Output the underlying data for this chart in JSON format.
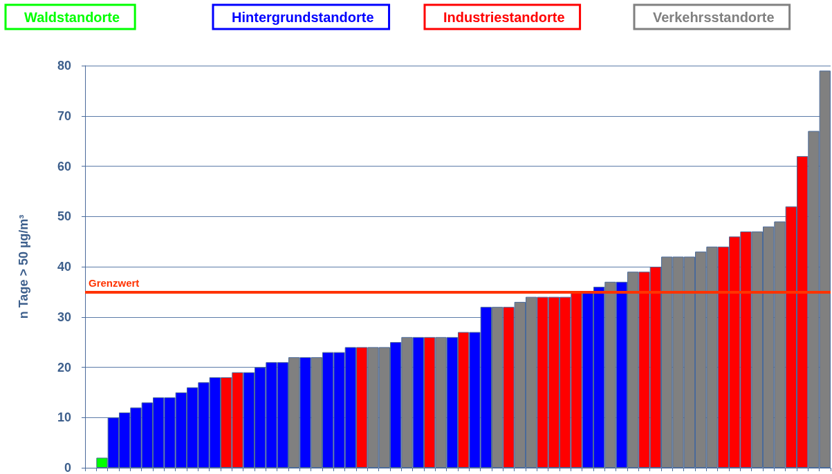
{
  "chart_data": {
    "type": "bar",
    "ylabel": "n Tage > 50 µg/m³",
    "categories": [
      null,
      null,
      null,
      null,
      null,
      null,
      null,
      null,
      null,
      null,
      null,
      null,
      null,
      null,
      null,
      null,
      null,
      null,
      null,
      null,
      null,
      null,
      null,
      null,
      null,
      null,
      null,
      null,
      null,
      null,
      null,
      null,
      null,
      null,
      null,
      null,
      null,
      null,
      null,
      null,
      null,
      null,
      null,
      null,
      null,
      null,
      null,
      null,
      null,
      null,
      null,
      null,
      null,
      null,
      null,
      null,
      null,
      null,
      null,
      null,
      null,
      null,
      null,
      null,
      null,
      null
    ],
    "stacked": true,
    "series": [
      {
        "name": "Waldstandorte",
        "color": "#00ff00",
        "values": [
          null,
          2,
          null,
          null,
          null,
          null,
          null,
          null,
          null,
          null,
          null,
          null,
          null,
          null,
          null,
          null,
          null,
          null,
          null,
          null,
          null,
          null,
          null,
          null,
          null,
          null,
          null,
          null,
          null,
          null,
          null,
          null,
          null,
          null,
          null,
          null,
          null,
          null,
          null,
          null,
          null,
          null,
          null,
          null,
          null,
          null,
          null,
          null,
          null,
          null,
          null,
          null,
          null,
          null,
          null,
          null,
          null,
          null,
          null,
          null,
          null,
          null,
          null,
          null,
          null,
          null
        ]
      },
      {
        "name": "Hintergrundstandorte",
        "color": "#0000ff",
        "values": [
          null,
          null,
          10,
          11,
          12,
          13,
          14,
          14,
          15,
          16,
          17,
          18,
          null,
          null,
          19,
          20,
          21,
          21,
          null,
          22,
          null,
          23,
          23,
          24,
          null,
          null,
          null,
          25,
          null,
          26,
          null,
          null,
          26,
          null,
          27,
          32,
          null,
          null,
          null,
          null,
          null,
          null,
          null,
          null,
          35,
          36,
          null,
          37,
          null,
          null,
          null,
          null,
          null,
          null,
          null,
          null,
          null,
          null,
          null,
          null,
          null,
          null,
          null,
          null,
          null,
          null
        ]
      },
      {
        "name": "Industriestandorte",
        "color": "#ff0000",
        "values": [
          null,
          null,
          null,
          null,
          null,
          null,
          null,
          null,
          null,
          null,
          null,
          null,
          18,
          19,
          null,
          null,
          null,
          null,
          null,
          null,
          null,
          null,
          null,
          null,
          24,
          null,
          null,
          null,
          null,
          null,
          26,
          null,
          null,
          27,
          null,
          null,
          null,
          32,
          null,
          null,
          34,
          34,
          34,
          35,
          null,
          null,
          null,
          null,
          null,
          39,
          40,
          null,
          null,
          null,
          null,
          null,
          44,
          46,
          47,
          null,
          null,
          null,
          52,
          62,
          null,
          null
        ]
      },
      {
        "name": "Verkehrsstandorte",
        "color": "#808080",
        "values": [
          null,
          null,
          null,
          null,
          null,
          null,
          null,
          null,
          null,
          null,
          null,
          null,
          null,
          null,
          null,
          null,
          null,
          null,
          22,
          null,
          22,
          null,
          null,
          null,
          null,
          24,
          24,
          null,
          26,
          null,
          null,
          26,
          null,
          null,
          null,
          null,
          32,
          null,
          33,
          34,
          null,
          null,
          null,
          null,
          null,
          null,
          37,
          null,
          39,
          null,
          null,
          42,
          42,
          42,
          43,
          44,
          null,
          null,
          null,
          47,
          48,
          49,
          null,
          null,
          67,
          79
        ]
      }
    ],
    "ylim": [
      0,
      80
    ],
    "yticks": [
      0,
      10,
      20,
      30,
      40,
      50,
      60,
      70,
      80
    ],
    "ref_lines": [
      {
        "axis": "y",
        "value": 35,
        "label": "Grenzwert",
        "color": "#ff3300"
      }
    ],
    "grid": "y",
    "legend": "top"
  }
}
